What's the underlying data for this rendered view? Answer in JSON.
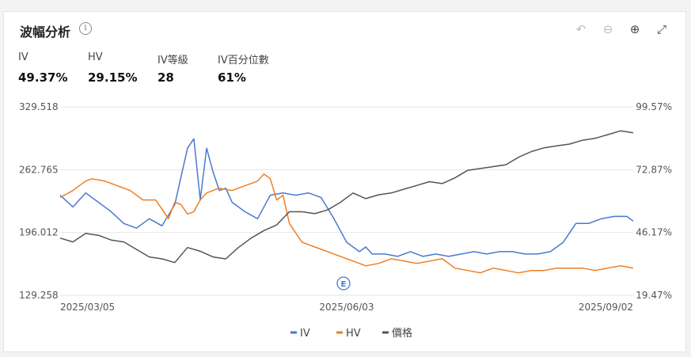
{
  "header": {
    "title": "波幅分析",
    "info_icon": "info-icon",
    "tools": [
      "undo-icon",
      "zoom-out-icon",
      "zoom-in-icon",
      "fullscreen-icon"
    ]
  },
  "stats": [
    {
      "label": "IV",
      "value": "49.37%"
    },
    {
      "label": "HV",
      "value": "29.15%"
    },
    {
      "label": "IV等級",
      "value": "28"
    },
    {
      "label": "IV百分位數",
      "value": "61%"
    }
  ],
  "chart_data": {
    "type": "line",
    "y_left_ticks": [
      "329.518",
      "262.765",
      "196.012",
      "129.258"
    ],
    "y_right_ticks": [
      "99.57%",
      "72.87%",
      "46.17%",
      "19.47%"
    ],
    "x_ticks": [
      "2025/03/05",
      "2025/06/03",
      "2025/09/02"
    ],
    "ylim_left": [
      129.258,
      329.518
    ],
    "ylim_right": [
      19.47,
      99.57
    ],
    "x_range": [
      0,
      180
    ],
    "earnings_marker": {
      "label": "E",
      "x": 89
    },
    "grid": true,
    "legend_position": "bottom-center",
    "series": [
      {
        "name": "IV",
        "axis": "right",
        "color": "#4a78d0",
        "x": [
          0,
          4,
          8,
          12,
          16,
          20,
          24,
          28,
          32,
          36,
          40,
          42,
          44,
          46,
          48,
          50,
          52,
          54,
          58,
          62,
          66,
          70,
          74,
          78,
          82,
          86,
          90,
          94,
          96,
          98,
          102,
          106,
          110,
          114,
          118,
          122,
          126,
          130,
          134,
          138,
          142,
          146,
          150,
          154,
          158,
          162,
          166,
          170,
          174,
          178,
          180
        ],
        "values": [
          62,
          57,
          63,
          59,
          55,
          50,
          48,
          52,
          49,
          58,
          82,
          86,
          60,
          82,
          72,
          64,
          65,
          59,
          55,
          52,
          62,
          63,
          62,
          63,
          61,
          52,
          42,
          38,
          40,
          37,
          37,
          36,
          38,
          36,
          37,
          36,
          37,
          38,
          37,
          38,
          38,
          37,
          37,
          38,
          42,
          50,
          50,
          52,
          53,
          53,
          51
        ]
      },
      {
        "name": "HV",
        "axis": "right",
        "color": "#ef7d22",
        "x": [
          0,
          4,
          6,
          8,
          10,
          14,
          18,
          22,
          26,
          30,
          34,
          36,
          38,
          40,
          42,
          44,
          46,
          48,
          50,
          54,
          58,
          62,
          64,
          66,
          68,
          70,
          72,
          76,
          80,
          84,
          88,
          92,
          96,
          100,
          104,
          108,
          112,
          116,
          120,
          124,
          128,
          132,
          136,
          140,
          144,
          148,
          152,
          156,
          160,
          164,
          168,
          172,
          176,
          180
        ],
        "values": [
          61,
          64,
          66,
          68,
          69,
          68,
          66,
          64,
          60,
          60,
          52,
          59,
          58,
          54,
          55,
          60,
          63,
          64,
          65,
          64,
          66,
          68,
          71,
          69,
          60,
          62,
          50,
          42,
          40,
          38,
          36,
          34,
          32,
          33,
          35,
          34,
          33,
          34,
          35,
          31,
          30,
          29,
          31,
          30,
          29,
          30,
          30,
          31,
          31,
          31,
          30,
          31,
          32,
          31
        ]
      },
      {
        "name": "價格",
        "axis": "left",
        "color": "#555555",
        "x": [
          0,
          4,
          8,
          12,
          16,
          20,
          24,
          28,
          32,
          36,
          40,
          44,
          48,
          52,
          56,
          60,
          64,
          68,
          72,
          76,
          80,
          84,
          88,
          92,
          96,
          100,
          104,
          108,
          112,
          116,
          120,
          124,
          128,
          132,
          136,
          140,
          144,
          148,
          152,
          156,
          160,
          164,
          168,
          172,
          176,
          180
        ],
        "values": [
          190,
          186,
          195,
          193,
          188,
          186,
          178,
          170,
          168,
          164,
          180,
          176,
          170,
          168,
          180,
          190,
          198,
          204,
          218,
          218,
          216,
          220,
          228,
          238,
          232,
          236,
          238,
          242,
          246,
          250,
          248,
          254,
          262,
          264,
          266,
          268,
          276,
          282,
          286,
          288,
          290,
          294,
          296,
          300,
          304,
          302
        ]
      }
    ]
  },
  "legend": [
    {
      "name": "IV",
      "color": "#4a78d0"
    },
    {
      "name": "HV",
      "color": "#ef7d22"
    },
    {
      "name": "價格",
      "color": "#555555"
    }
  ]
}
